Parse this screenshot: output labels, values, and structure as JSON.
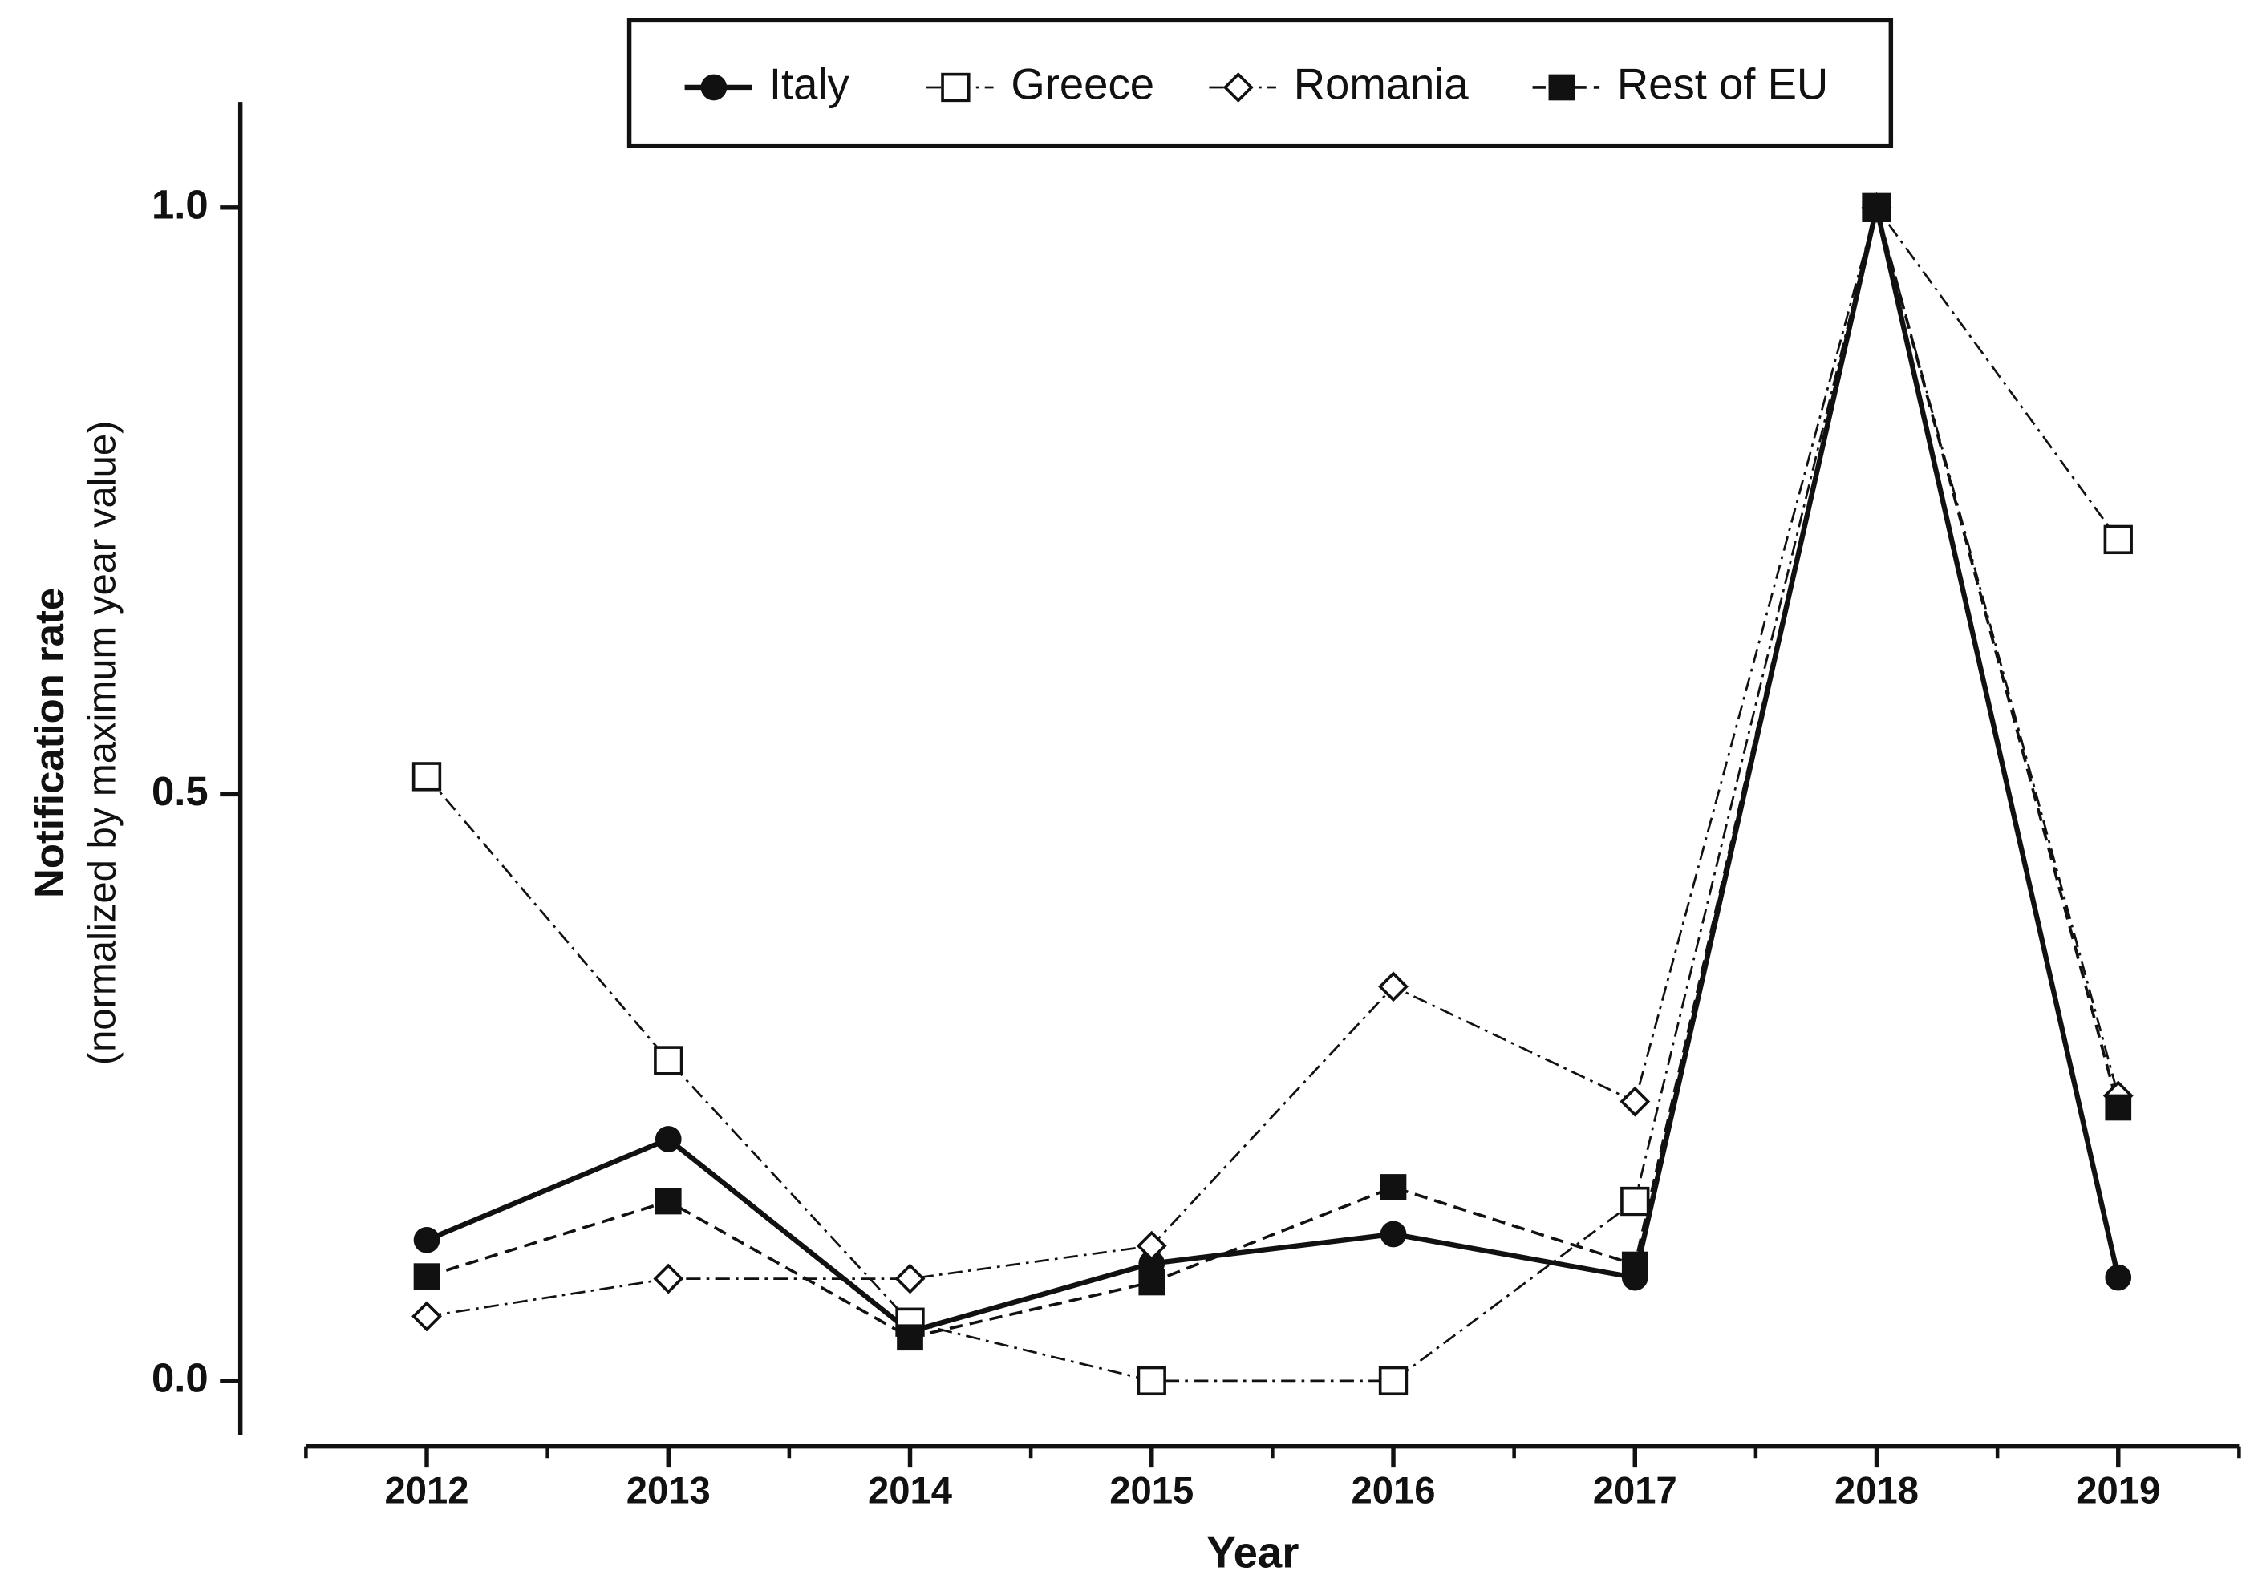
{
  "chart_data": {
    "type": "line",
    "xlabel": "Year",
    "ylabel": "Notification rate",
    "ylabel_note": "(normalized by maximum year value)",
    "categories": [
      "2012",
      "2013",
      "2014",
      "2015",
      "2016",
      "2017",
      "2018",
      "2019"
    ],
    "ylim": [
      -0.046,
      1.09
    ],
    "yticks": [
      {
        "value": 0,
        "label": "0.0"
      },
      0.5,
      {
        "value": 1,
        "label": "1.0"
      }
    ],
    "grid": false,
    "legend": "top",
    "series": [
      {
        "name": "Italy",
        "color": "#111111",
        "marker": "circle",
        "dash": "solid",
        "values": [
          0.12,
          0.206,
          0.042,
          0.1,
          0.125,
          0.088,
          1.0,
          0.088
        ]
      },
      {
        "name": "Greece",
        "color": "#111111",
        "marker": "open-square",
        "dash": "dash-dot",
        "values": [
          0.515,
          0.273,
          0.05,
          0,
          0,
          0.153,
          1.0,
          0.717
        ]
      },
      {
        "name": "Romania",
        "color": "#111111",
        "marker": "open-diamond",
        "dash": "dash-dot",
        "values": [
          0.055,
          0.087,
          0.087,
          0.115,
          0.336,
          0.238,
          1.0,
          0.243
        ]
      },
      {
        "name": "Rest of EU",
        "color": "#111111",
        "marker": "square",
        "dash": "dashed",
        "values": [
          0.089,
          0.153,
          0.037,
          0.084,
          0.165,
          0.099,
          1.0,
          0.233
        ]
      }
    ]
  }
}
